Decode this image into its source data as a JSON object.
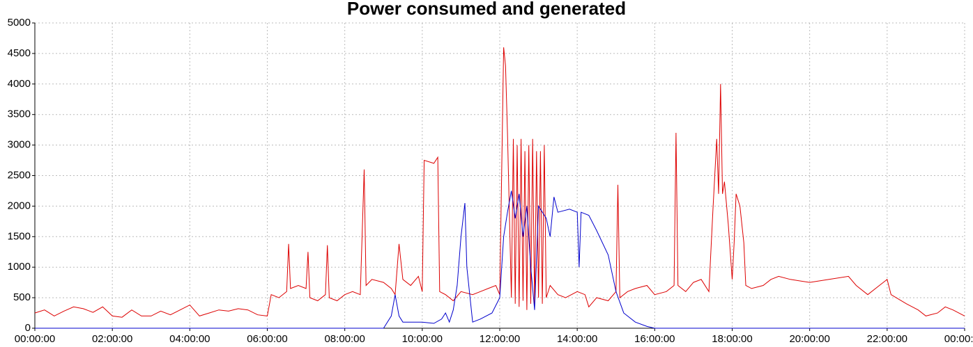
{
  "chart_data": {
    "type": "line",
    "title": "Power consumed and generated",
    "xlim": [
      0,
      24
    ],
    "xticks": [
      {
        "value": 0,
        "label": "00:00:00"
      },
      {
        "value": 2,
        "label": "02:00:00"
      },
      {
        "value": 4,
        "label": "04:00:00"
      },
      {
        "value": 6,
        "label": "06:00:00"
      },
      {
        "value": 8,
        "label": "08:00:00"
      },
      {
        "value": 10,
        "label": "10:00:00"
      },
      {
        "value": 12,
        "label": "12:00:00"
      },
      {
        "value": 14,
        "label": "14:00:00"
      },
      {
        "value": 16,
        "label": "16:00:00"
      },
      {
        "value": 18,
        "label": "18:00:00"
      },
      {
        "value": 20,
        "label": "20:00:00"
      },
      {
        "value": 22,
        "label": "22:00:00"
      },
      {
        "value": 24,
        "label": "00:00:00"
      }
    ],
    "ylim": [
      0,
      5000
    ],
    "yticks": [
      0,
      500,
      1000,
      1500,
      2000,
      2500,
      3000,
      3500,
      4000,
      4500,
      5000
    ],
    "grid": true,
    "series": [
      {
        "color": "#dd0000",
        "x": [
          0,
          0.25,
          0.5,
          0.75,
          1,
          1.25,
          1.5,
          1.75,
          2,
          2.25,
          2.5,
          2.75,
          3,
          3.25,
          3.5,
          3.75,
          4,
          4.25,
          4.5,
          4.75,
          5,
          5.25,
          5.5,
          5.75,
          6,
          6.1,
          6.3,
          6.5,
          6.55,
          6.6,
          6.8,
          7,
          7.05,
          7.1,
          7.3,
          7.5,
          7.55,
          7.6,
          7.8,
          8,
          8.2,
          8.4,
          8.5,
          8.55,
          8.7,
          9,
          9.2,
          9.3,
          9.4,
          9.5,
          9.7,
          9.9,
          10,
          10.05,
          10.3,
          10.4,
          10.45,
          10.6,
          10.8,
          11,
          11.3,
          11.5,
          11.7,
          11.9,
          12,
          12.1,
          12.15,
          12.2,
          12.3,
          12.35,
          12.4,
          12.45,
          12.5,
          12.55,
          12.6,
          12.65,
          12.7,
          12.75,
          12.8,
          12.85,
          12.9,
          12.95,
          13,
          13.05,
          13.1,
          13.15,
          13.2,
          13.3,
          13.5,
          13.7,
          14,
          14.2,
          14.3,
          14.5,
          14.8,
          15,
          15.05,
          15.1,
          15.3,
          15.5,
          15.8,
          16,
          16.3,
          16.5,
          16.55,
          16.6,
          16.8,
          17,
          17.2,
          17.4,
          17.5,
          17.6,
          17.65,
          17.7,
          17.75,
          17.8,
          17.9,
          18,
          18.05,
          18.1,
          18.2,
          18.3,
          18.35,
          18.5,
          18.8,
          19,
          19.2,
          19.5,
          20,
          20.5,
          21,
          21.2,
          21.5,
          21.8,
          22,
          22.1,
          22.5,
          22.8,
          23,
          23.3,
          23.5,
          23.7,
          24
        ],
        "values": [
          250,
          300,
          200,
          280,
          350,
          320,
          260,
          350,
          200,
          180,
          300,
          200,
          200,
          280,
          220,
          300,
          380,
          200,
          250,
          300,
          280,
          320,
          300,
          220,
          200,
          550,
          500,
          600,
          1380,
          650,
          700,
          650,
          1250,
          500,
          450,
          550,
          1360,
          500,
          450,
          550,
          600,
          550,
          2600,
          700,
          800,
          750,
          650,
          550,
          1380,
          800,
          700,
          850,
          600,
          2750,
          2700,
          2800,
          600,
          550,
          450,
          600,
          550,
          600,
          650,
          700,
          550,
          4600,
          4300,
          3200,
          500,
          3100,
          400,
          3000,
          350,
          3100,
          450,
          2900,
          300,
          3000,
          400,
          3100,
          350,
          2900,
          500,
          2900,
          400,
          3000,
          500,
          700,
          550,
          500,
          600,
          550,
          350,
          500,
          450,
          600,
          2350,
          500,
          600,
          650,
          700,
          550,
          600,
          700,
          3200,
          700,
          600,
          750,
          800,
          600,
          1900,
          3100,
          2200,
          4000,
          2200,
          2400,
          1700,
          800,
          1400,
          2200,
          2000,
          1400,
          700,
          650,
          700,
          800,
          850,
          800,
          750,
          800,
          850,
          700,
          550,
          700,
          800,
          550,
          400,
          300,
          200,
          250,
          350,
          300,
          200
        ]
      },
      {
        "color": "#0000cc",
        "x": [
          0,
          9,
          9.2,
          9.3,
          9.4,
          9.5,
          10,
          10.3,
          10.5,
          10.6,
          10.7,
          10.8,
          10.9,
          11,
          11.1,
          11.15,
          11.3,
          11.5,
          11.8,
          12,
          12.1,
          12.2,
          12.3,
          12.4,
          12.5,
          12.6,
          12.7,
          12.8,
          12.9,
          13,
          13.2,
          13.3,
          13.4,
          13.5,
          13.8,
          14,
          14.05,
          14.1,
          14.3,
          14.5,
          14.8,
          15,
          15.2,
          15.5,
          15.8,
          16,
          24
        ],
        "values": [
          0,
          0,
          200,
          550,
          200,
          100,
          100,
          80,
          150,
          250,
          100,
          300,
          700,
          1500,
          2050,
          1000,
          100,
          150,
          250,
          500,
          1500,
          1900,
          2250,
          1800,
          2200,
          1500,
          2000,
          1000,
          300,
          2000,
          1800,
          1500,
          2150,
          1900,
          1950,
          1900,
          1000,
          1900,
          1850,
          1600,
          1200,
          600,
          250,
          100,
          30,
          0,
          0
        ]
      }
    ]
  }
}
